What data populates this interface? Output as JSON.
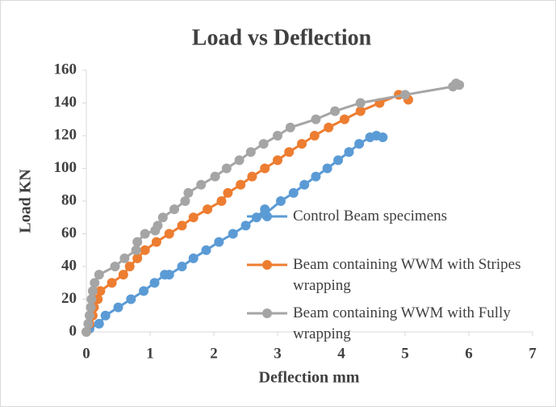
{
  "chart_data": {
    "type": "scatter-line",
    "title": "Load vs Deflection",
    "xlabel": "Deflection mm",
    "ylabel": "Load KN",
    "xlim": [
      0,
      7
    ],
    "xticks": [
      0,
      1,
      2,
      3,
      4,
      5,
      6,
      7
    ],
    "ylim": [
      0,
      160
    ],
    "yticks": [
      0,
      20,
      40,
      60,
      80,
      100,
      120,
      140,
      160
    ],
    "grid": false,
    "legend": "right",
    "series": [
      {
        "name": "Control Beam specimens",
        "color": "#5b9bd5",
        "x": [
          0.05,
          0.2,
          0.3,
          0.5,
          0.7,
          0.9,
          1.07,
          1.23,
          1.3,
          1.5,
          1.68,
          1.88,
          2.08,
          2.3,
          2.5,
          2.67,
          2.8,
          2.8,
          3.05,
          3.25,
          3.42,
          3.6,
          3.78,
          3.95,
          4.12,
          4.28,
          4.45,
          4.55,
          4.65
        ],
        "values": [
          2,
          5,
          10,
          15,
          20,
          25,
          30,
          35,
          35,
          40,
          45,
          50,
          55,
          60,
          65,
          70,
          75,
          72,
          80,
          85,
          90,
          95,
          100,
          105,
          110,
          115,
          119,
          120,
          119
        ]
      },
      {
        "name": "Beam containing WWM with Stripes wrapping",
        "color": "#ed7d31",
        "x": [
          0,
          0.05,
          0.1,
          0.12,
          0.18,
          0.22,
          0.4,
          0.58,
          0.68,
          0.8,
          0.92,
          1.1,
          1.3,
          1.5,
          1.68,
          1.9,
          2.12,
          2.22,
          2.42,
          2.6,
          2.8,
          3.0,
          3.18,
          3.38,
          3.58,
          3.8,
          4.05,
          4.3,
          4.6,
          4.9,
          5.05
        ],
        "values": [
          0,
          5,
          10,
          15,
          20,
          25,
          30,
          35,
          40,
          45,
          50,
          55,
          60,
          65,
          70,
          75,
          80,
          85,
          90,
          95,
          100,
          105,
          110,
          115,
          120,
          125,
          130,
          135,
          140,
          145,
          142
        ]
      },
      {
        "name": "Beam containing WWM with Fully wrapping",
        "color": "#a5a5a5",
        "x": [
          0,
          0.03,
          0.05,
          0.07,
          0.08,
          0.1,
          0.13,
          0.2,
          0.45,
          0.6,
          0.78,
          0.8,
          0.92,
          1.08,
          1.12,
          1.2,
          1.38,
          1.55,
          1.6,
          1.8,
          2.02,
          2.2,
          2.4,
          2.58,
          2.78,
          3.0,
          3.2,
          3.6,
          3.9,
          4.3,
          5.0,
          5.75,
          5.8,
          5.85
        ],
        "values": [
          0,
          5,
          10,
          15,
          20,
          25,
          30,
          35,
          40,
          45,
          50,
          55,
          60,
          62,
          65,
          70,
          75,
          80,
          85,
          90,
          95,
          100,
          105,
          110,
          115,
          120,
          125,
          130,
          135,
          140,
          145,
          150,
          152,
          151
        ]
      }
    ]
  }
}
